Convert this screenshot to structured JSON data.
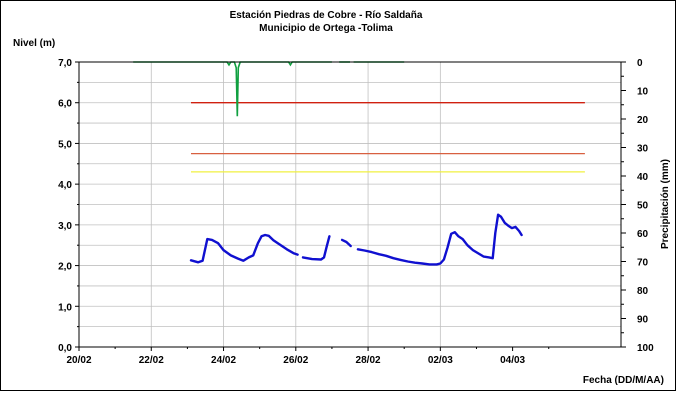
{
  "chart_data": {
    "type": "line",
    "title": "Estación Piedras de Cobre  - Río Saldaña",
    "subtitle": "Municipio de Ortega -Tolima",
    "ylabel": "Nivel (m)",
    "y2label": "Precipitación (mm)",
    "xlabel": "Fecha (DD/M/AA)",
    "ylim": [
      0,
      7
    ],
    "y2lim": [
      0,
      100
    ],
    "y2_inverted": true,
    "x_tick_labels": [
      "20/02",
      "22/02",
      "24/02",
      "26/02",
      "28/02",
      "02/03",
      "04/03"
    ],
    "y_tick_labels": [
      "0,0",
      "1,0",
      "2,0",
      "3,0",
      "4,0",
      "5,0",
      "6,0",
      "7,0"
    ],
    "y2_tick_labels": [
      "0",
      "10",
      "20",
      "30",
      "40",
      "50",
      "60",
      "70",
      "80",
      "90",
      "100"
    ],
    "grid": true,
    "legend": "none",
    "series": [
      {
        "kind": "level",
        "color": "#1010d0",
        "segments": [
          [
            [
              23.1,
              2.13
            ],
            [
              23.3,
              2.08
            ],
            [
              23.42,
              2.12
            ],
            [
              23.55,
              2.65
            ],
            [
              23.68,
              2.63
            ],
            [
              23.85,
              2.55
            ],
            [
              24.0,
              2.38
            ],
            [
              24.2,
              2.25
            ],
            [
              24.4,
              2.17
            ],
            [
              24.55,
              2.12
            ],
            [
              24.7,
              2.2
            ],
            [
              24.82,
              2.25
            ],
            [
              24.95,
              2.55
            ],
            [
              25.05,
              2.72
            ],
            [
              25.15,
              2.75
            ],
            [
              25.25,
              2.73
            ],
            [
              25.38,
              2.62
            ],
            [
              25.55,
              2.52
            ],
            [
              25.75,
              2.4
            ],
            [
              25.95,
              2.3
            ],
            [
              26.05,
              2.27
            ]
          ],
          [
            [
              26.2,
              2.2
            ],
            [
              26.45,
              2.16
            ],
            [
              26.7,
              2.15
            ],
            [
              26.78,
              2.2
            ],
            [
              26.85,
              2.45
            ],
            [
              26.93,
              2.72
            ]
          ],
          [
            [
              27.28,
              2.63
            ],
            [
              27.4,
              2.58
            ],
            [
              27.52,
              2.48
            ]
          ],
          [
            [
              27.72,
              2.4
            ],
            [
              27.9,
              2.37
            ],
            [
              28.1,
              2.33
            ],
            [
              28.3,
              2.28
            ],
            [
              28.5,
              2.24
            ],
            [
              28.7,
              2.18
            ],
            [
              28.9,
              2.14
            ],
            [
              29.1,
              2.1
            ],
            [
              29.3,
              2.07
            ],
            [
              29.5,
              2.05
            ],
            [
              29.7,
              2.03
            ],
            [
              29.9,
              2.03
            ],
            [
              30.0,
              2.05
            ],
            [
              30.1,
              2.15
            ],
            [
              30.2,
              2.45
            ],
            [
              30.3,
              2.78
            ],
            [
              30.4,
              2.82
            ],
            [
              30.5,
              2.72
            ],
            [
              30.62,
              2.65
            ],
            [
              30.75,
              2.5
            ],
            [
              30.9,
              2.38
            ],
            [
              31.05,
              2.3
            ],
            [
              31.2,
              2.22
            ],
            [
              31.35,
              2.2
            ],
            [
              31.45,
              2.18
            ],
            [
              31.52,
              2.8
            ],
            [
              31.6,
              3.25
            ],
            [
              31.68,
              3.2
            ],
            [
              31.78,
              3.05
            ],
            [
              31.88,
              2.98
            ],
            [
              31.98,
              2.92
            ],
            [
              32.08,
              2.95
            ],
            [
              32.18,
              2.85
            ],
            [
              32.25,
              2.75
            ]
          ]
        ]
      },
      {
        "kind": "precipitation",
        "color": "#10a040",
        "segments": [
          [
            [
              21.5,
              0
            ],
            [
              23.0,
              0
            ],
            [
              24.1,
              0
            ],
            [
              24.15,
              1
            ],
            [
              24.2,
              0
            ],
            [
              24.3,
              0
            ],
            [
              24.35,
              2
            ],
            [
              24.38,
              19
            ],
            [
              24.41,
              2
            ],
            [
              24.46,
              0
            ],
            [
              25.8,
              0
            ],
            [
              25.85,
              1
            ],
            [
              25.9,
              0
            ],
            [
              27.0,
              0
            ]
          ],
          [
            [
              27.2,
              0
            ],
            [
              27.5,
              0
            ]
          ],
          [
            [
              27.6,
              0
            ],
            [
              29.0,
              0
            ]
          ]
        ]
      },
      {
        "kind": "threshold",
        "color": "#d02010",
        "values": [
          [
            23.1,
            6.0
          ],
          [
            34.0,
            6.0
          ]
        ]
      },
      {
        "kind": "threshold",
        "color": "#d86040",
        "values": [
          [
            23.1,
            4.75
          ],
          [
            34.0,
            4.75
          ]
        ]
      },
      {
        "kind": "threshold",
        "color": "#f0f040",
        "values": [
          [
            23.1,
            4.3
          ],
          [
            34.0,
            4.3
          ]
        ]
      }
    ]
  }
}
